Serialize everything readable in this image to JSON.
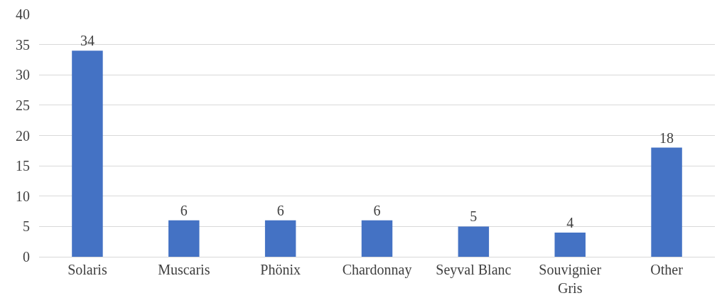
{
  "chart_data": {
    "type": "bar",
    "categories": [
      "Solaris",
      "Muscaris",
      "Phönix",
      "Chardonnay",
      "Seyval Blanc",
      "Souvignier Gris",
      "Other"
    ],
    "values": [
      34,
      6,
      6,
      6,
      5,
      4,
      18
    ],
    "color": "#4472c4",
    "ylim": [
      0,
      40
    ],
    "yticks": [
      0,
      5,
      10,
      15,
      20,
      25,
      30,
      35,
      40
    ],
    "grid": "y",
    "data_labels": true,
    "legend": false
  }
}
